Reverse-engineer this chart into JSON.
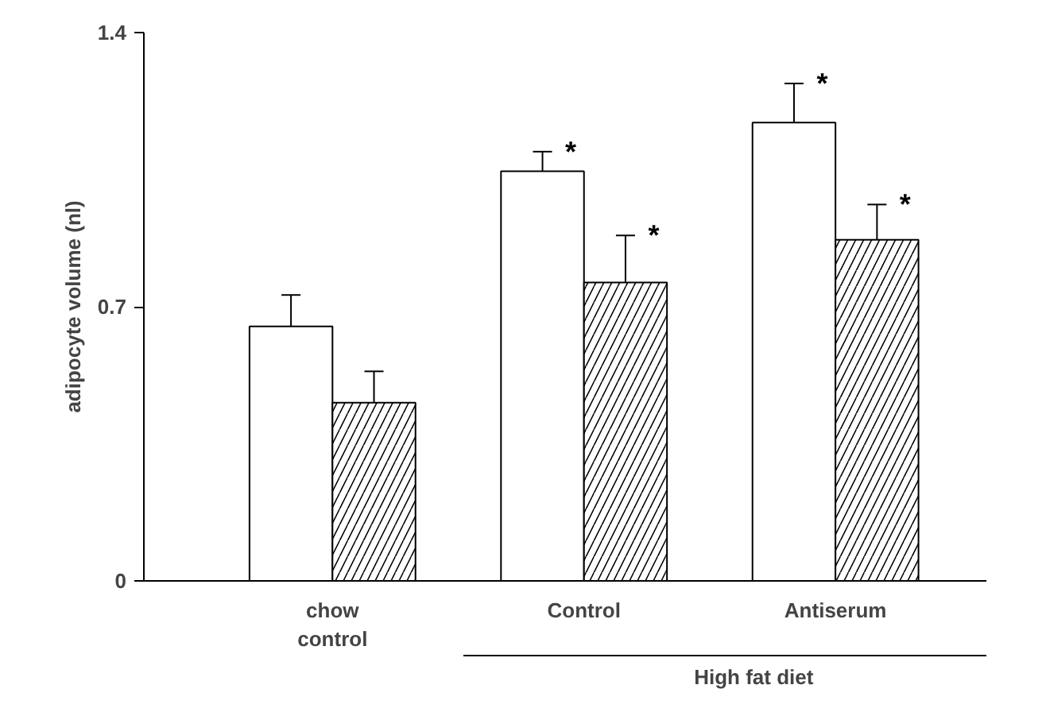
{
  "chart_data": {
    "type": "bar",
    "ylabel": "adipocyte volume (nl)",
    "categories": [
      "chow\ncontrol",
      "Control",
      "Antiserum"
    ],
    "series": [
      {
        "color": "#ffffff",
        "values": [
          0.65,
          1.046,
          1.17
        ],
        "errors": [
          0.08,
          0.05,
          0.1
        ]
      },
      {
        "color": "#ffffff",
        "values": [
          0.455,
          0.762,
          0.871
        ],
        "errors": [
          0.08,
          0.12,
          0.09
        ]
      }
    ],
    "ylim": [
      0,
      1.4
    ],
    "yticks": [
      0,
      0.7,
      1.4
    ],
    "grid": false,
    "annotations": [
      "*",
      "*",
      "*",
      "*",
      "High fat diet"
    ]
  }
}
